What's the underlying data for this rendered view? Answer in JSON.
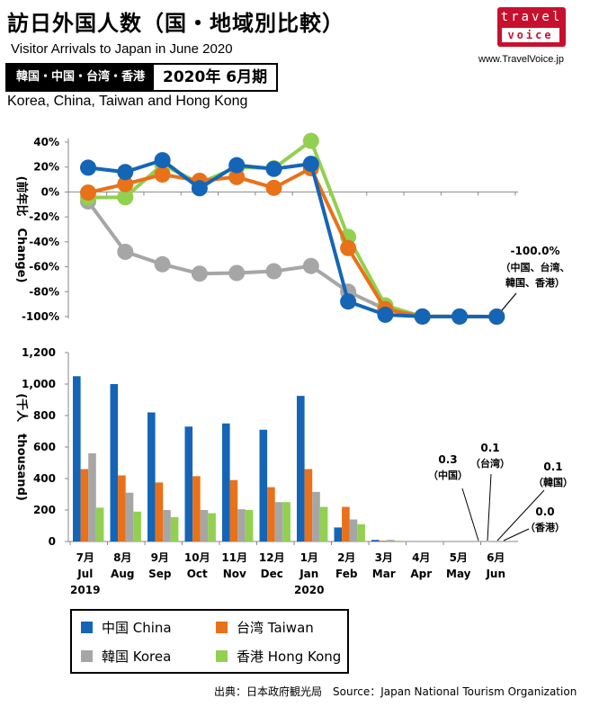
{
  "header": {
    "title": "訪日外国人数（国・地域別比較）",
    "subtitle_en": "Visitor Arrivals to Japan in June 2020",
    "region_jp": "韓国・中国・台湾・香港",
    "period": "2020年 6月期",
    "region_en": "Korea, China, Taiwan and Hong Kong"
  },
  "brand": {
    "logo_top": "travel",
    "logo_bottom": "voice",
    "site": "www.TravelVoice.jp"
  },
  "source": "出典：日本政府観光局　Source：Japan  National Tourism  Organization",
  "colors": {
    "china": "#1565b6",
    "taiwan": "#e8711a",
    "korea": "#a6a6a6",
    "hongkong": "#92d050"
  },
  "legend": [
    {
      "key": "china",
      "label": "中国 China"
    },
    {
      "key": "taiwan",
      "label": "台湾 Taiwan"
    },
    {
      "key": "korea",
      "label": "韓国 Korea"
    },
    {
      "key": "hongkong",
      "label": "香港 Hong Kong"
    }
  ],
  "chart_data": [
    {
      "type": "line",
      "ylabel": "(前年比　Change)",
      "ylim": [
        -100,
        40
      ],
      "yticks": [
        "40%",
        "20%",
        "0%",
        "-20%",
        "-40%",
        "-60%",
        "-80%",
        "-100%"
      ],
      "categories": [
        "7月",
        "8月",
        "9月",
        "10月",
        "11月",
        "12月",
        "1月",
        "2月",
        "3月",
        "4月",
        "5月",
        "6月"
      ],
      "grid": false,
      "series": [
        {
          "key": "korea",
          "values": [
            -7.6,
            -48,
            -58,
            -65.5,
            -65,
            -63.6,
            -59.4,
            -80,
            -94,
            -99.9,
            -99.9,
            -100
          ]
        },
        {
          "key": "hongkong",
          "values": [
            -4.5,
            -4.2,
            22,
            7,
            20,
            19,
            41,
            -36,
            -91,
            -100,
            -100,
            -100
          ]
        },
        {
          "key": "taiwan",
          "values": [
            -0.5,
            6.3,
            14,
            9,
            12,
            3.3,
            19,
            -45,
            -94,
            -99.9,
            -99.9,
            -100
          ]
        },
        {
          "key": "china",
          "values": [
            19.5,
            16,
            25.5,
            3,
            21.5,
            18.5,
            22.6,
            -87.9,
            -98.5,
            -99.9,
            -99.9,
            -100
          ]
        }
      ],
      "annotation": {
        "value": "-100.0%",
        "note": "（中国、台湾、",
        "note2": "韓国、香港）"
      }
    },
    {
      "type": "bar",
      "ylabel": "(千人　thousand)",
      "ylim": [
        0,
        1200
      ],
      "yticks": [
        "1,200",
        "1,000",
        "800",
        "600",
        "400",
        "200",
        "0"
      ],
      "categories": [
        {
          "month": "7月",
          "en": "Jul",
          "year": "2019"
        },
        {
          "month": "8月",
          "en": "Aug",
          "year": ""
        },
        {
          "month": "9月",
          "en": "Sep",
          "year": ""
        },
        {
          "month": "10月",
          "en": "Oct",
          "year": ""
        },
        {
          "month": "11月",
          "en": "Nov",
          "year": ""
        },
        {
          "month": "12月",
          "en": "Dec",
          "year": ""
        },
        {
          "month": "1月",
          "en": "Jan",
          "year": "2020"
        },
        {
          "month": "2月",
          "en": "Feb",
          "year": ""
        },
        {
          "month": "3月",
          "en": "Mar",
          "year": ""
        },
        {
          "month": "4月",
          "en": "Apr",
          "year": ""
        },
        {
          "month": "5月",
          "en": "May",
          "year": ""
        },
        {
          "month": "6月",
          "en": "Jun",
          "year": ""
        }
      ],
      "series": [
        {
          "key": "china",
          "values": [
            1050,
            1000,
            820,
            730,
            750,
            710,
            925,
            89,
            10,
            0.3,
            0.2,
            0.3
          ]
        },
        {
          "key": "taiwan",
          "values": [
            460,
            420,
            375,
            415,
            390,
            345,
            460,
            220,
            5,
            0.2,
            0.1,
            0.1
          ]
        },
        {
          "key": "korea",
          "values": [
            560,
            310,
            200,
            200,
            205,
            250,
            315,
            140,
            10,
            0.2,
            0.1,
            0.1
          ]
        },
        {
          "key": "hongkong",
          "values": [
            215,
            190,
            155,
            180,
            200,
            250,
            220,
            110,
            5,
            0.1,
            0.1,
            0.0
          ]
        }
      ],
      "annotations": [
        {
          "value": "0.3",
          "note": "（中国）"
        },
        {
          "value": "0.1",
          "note": "（台湾）"
        },
        {
          "value": "0.1",
          "note": "（韓国）"
        },
        {
          "value": "0.0",
          "note": "（香港）"
        }
      ]
    }
  ]
}
